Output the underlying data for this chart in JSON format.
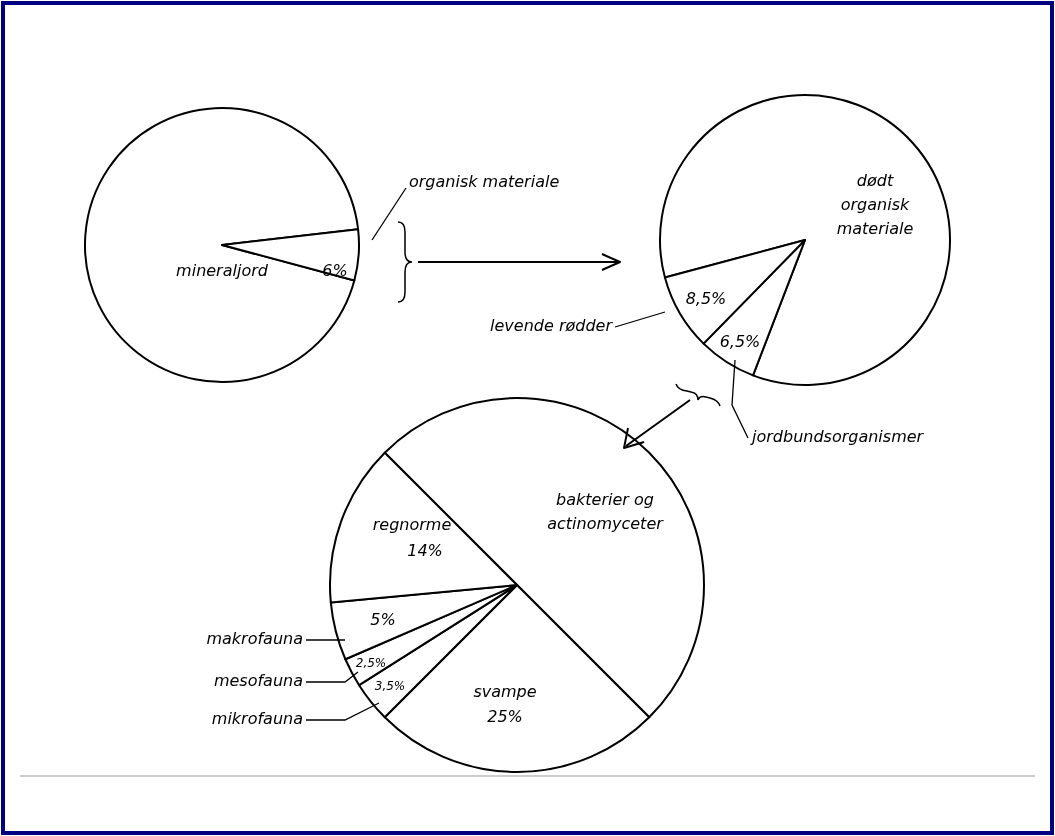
{
  "chart_data": [
    {
      "type": "pie",
      "categories": [
        "mineraljord",
        "organisk materiale"
      ],
      "values": [
        94,
        6
      ],
      "colors": [
        "#ffffff",
        "#ffffff"
      ],
      "value_labels": [
        null,
        "6%"
      ]
    },
    {
      "type": "pie",
      "categories": [
        "dødt organisk materiale",
        "jordbundsorganismer",
        "levende rødder"
      ],
      "values": [
        85,
        6.5,
        8.5
      ],
      "colors": [
        "#ffffff",
        "#ffffff",
        "#ffffff"
      ],
      "value_labels": [
        null,
        "6,5%",
        "8,5%"
      ]
    },
    {
      "type": "pie",
      "categories": [
        "bakterier og actinomyceter",
        "svampe",
        "mikrofauna",
        "mesofauna",
        "makrofauna",
        "regnorme"
      ],
      "values": [
        50,
        25,
        3.5,
        2.5,
        5,
        14
      ],
      "colors": [
        "#ffffff",
        "#ffffff",
        "#ffffff",
        "#ffffff",
        "#ffffff",
        "#ffffff"
      ],
      "value_labels": [
        null,
        "25%",
        "3,5%",
        "2,5%",
        "5%",
        "14%"
      ]
    }
  ]
}
